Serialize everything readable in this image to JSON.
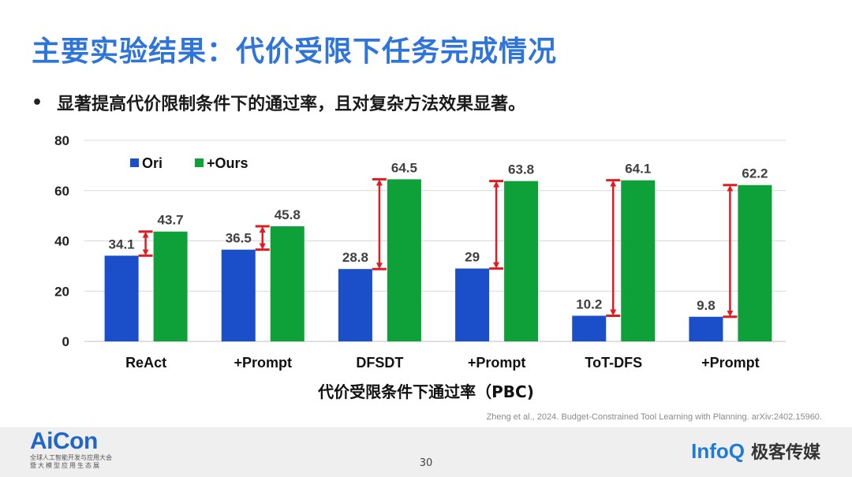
{
  "title": "主要实验结果：代价受限下任务完成情况",
  "bullet": {
    "dot": "•",
    "text": "显著提高代价限制条件下的通过率，且对复杂方法效果显著。"
  },
  "chart_data": {
    "type": "bar",
    "categories": [
      "ReAct",
      "+Prompt",
      "DFSDT",
      "+Prompt",
      "ToT-DFS",
      "+Prompt"
    ],
    "series": [
      {
        "name": "Ori",
        "color": "#1a4fc9",
        "values": [
          34.1,
          36.5,
          28.8,
          29,
          10.2,
          9.8
        ],
        "labels": [
          "34.1",
          "36.5",
          "28.8",
          "29",
          "10.2",
          "9.8"
        ]
      },
      {
        "name": "+Ours",
        "color": "#0ea13a",
        "values": [
          43.7,
          45.8,
          64.5,
          63.8,
          64.1,
          62.2
        ],
        "labels": [
          "43.7",
          "45.8",
          "64.5",
          "63.8",
          "64.1",
          "62.2"
        ]
      }
    ],
    "xlabel": "代价受限条件下通过率（PBC)",
    "ylim": [
      0,
      80
    ],
    "yticks": [
      0,
      20,
      40,
      60,
      80
    ],
    "grid": true,
    "legend_position": "top-left",
    "annotation": "red double-headed arrows between Ori and +Ours bar tops",
    "arrow_color": "#e01b22"
  },
  "citation": "Zheng et al., 2024. Budget-Constrained Tool Learning with Planning. arXiv:2402.15960.",
  "footer": {
    "aicon_name": "AiCon",
    "aicon_sub1": "全球人工智能开发与应用大会",
    "aicon_sub2": "暨大模型应用生态展",
    "page_number": "30",
    "infoq_name": "InfoQ",
    "infoq_cn": "极客传媒"
  }
}
